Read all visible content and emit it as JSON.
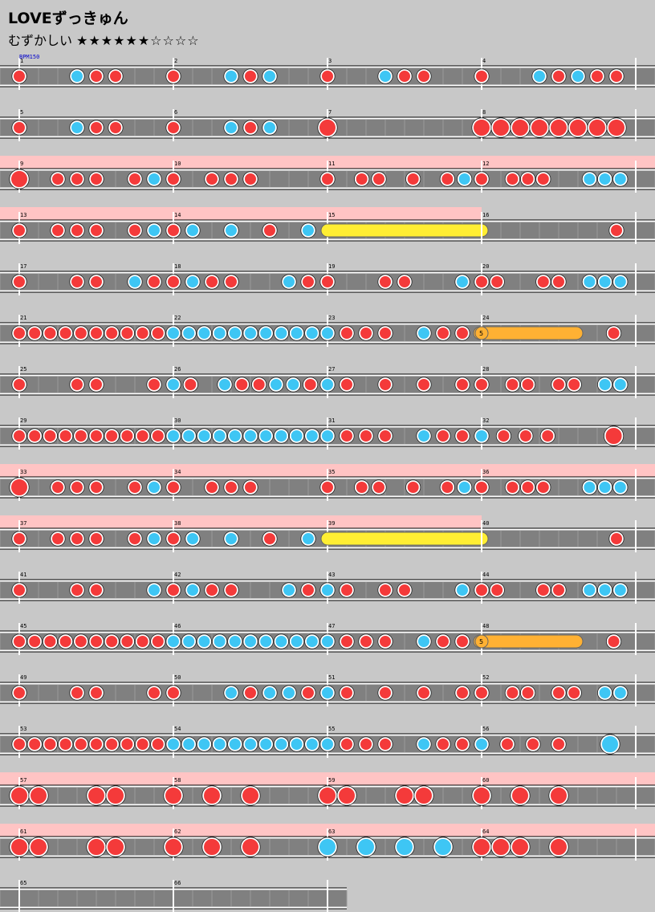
{
  "song": {
    "title": "LOVEずっきゅん"
  },
  "difficulty": {
    "label": "むずかしい",
    "stars": "★★★★★★☆☆☆☆"
  },
  "bpm_label": "BPM150",
  "colors": {
    "don": "#f43a3a",
    "ka": "#3ec6f4",
    "drumroll": "#ffee33",
    "balloon": "#ffb133",
    "gogo": "#ffc4c4",
    "lane": "#808080"
  },
  "measures_per_row": 4,
  "subdivisions": 8,
  "row_heights": [
    {
      "row": 1,
      "gogo": false
    },
    {
      "row": 2,
      "gogo": false
    },
    {
      "row": 3,
      "gogo": true
    },
    {
      "row": 4,
      "gogo": true
    },
    {
      "row": 5,
      "gogo": false
    },
    {
      "row": 6,
      "gogo": false
    },
    {
      "row": 7,
      "gogo": false
    },
    {
      "row": 8,
      "gogo": false
    },
    {
      "row": 9,
      "gogo": true
    },
    {
      "row": 10,
      "gogo": true
    },
    {
      "row": 11,
      "gogo": false
    },
    {
      "row": 12,
      "gogo": false
    },
    {
      "row": 13,
      "gogo": false
    },
    {
      "row": 14,
      "gogo": false
    },
    {
      "row": 15,
      "gogo": true
    },
    {
      "row": 16,
      "gogo": true
    },
    {
      "row": 17,
      "gogo": false
    }
  ],
  "measures": [
    {
      "n": "1",
      "notes": "d..kdd.."
    },
    {
      "n": "2",
      "notes": "d..kdk.."
    },
    {
      "n": "3",
      "notes": "d..kdd.."
    },
    {
      "n": "4",
      "notes": "d..kdkdd"
    },
    {
      "n": "5",
      "notes": "d..kdd.."
    },
    {
      "n": "6",
      "notes": "d..kdk.."
    },
    {
      "n": "7",
      "notes": "D......."
    },
    {
      "n": "8",
      "notes": "DDDDDDDD"
    },
    {
      "n": "9",
      "notes": "D.ddd.dk"
    },
    {
      "n": "10",
      "notes": "d.ddd..."
    },
    {
      "n": "11",
      "notes": "d.dd.d.dk"
    },
    {
      "n": "12",
      "notes": "d.ddd..kkk"
    },
    {
      "n": "13",
      "notes": "d.ddd.dk"
    },
    {
      "n": "14",
      "notes": "dk.k.d.k"
    },
    {
      "n": "15",
      "notes": "r"
    },
    {
      "n": "16",
      "notes": ".......d"
    },
    {
      "n": "17",
      "notes": "d..dd.kd"
    },
    {
      "n": "18",
      "notes": "dkdd..kd"
    },
    {
      "n": "19",
      "notes": "d..dd..k"
    },
    {
      "n": "20",
      "notes": "dd..dd.kkk"
    },
    {
      "n": "21",
      "notes": "dddddddddd"
    },
    {
      "n": "22",
      "notes": "kkkkkkkkkk"
    },
    {
      "n": "23",
      "notes": "kddd.kdd"
    },
    {
      "n": "24",
      "notes": "b.....d"
    },
    {
      "n": "25",
      "notes": "d..dd..d"
    },
    {
      "n": "26",
      "notes": "kd.kddkkd"
    },
    {
      "n": "27",
      "notes": "kd.d.d.d"
    },
    {
      "n": "28",
      "notes": "d.dd.dd.kk"
    },
    {
      "n": "29",
      "notes": "dddddddddd"
    },
    {
      "n": "30",
      "notes": "kkkkkkkkkk"
    },
    {
      "n": "31",
      "notes": "kddd.kdd"
    },
    {
      "n": "32",
      "notes": "kddd..D"
    },
    {
      "n": "33",
      "notes": "D.ddd.dk"
    },
    {
      "n": "34",
      "notes": "d.ddd..."
    },
    {
      "n": "35",
      "notes": "d.dd.d.dk"
    },
    {
      "n": "36",
      "notes": "d.ddd..kkk"
    },
    {
      "n": "37",
      "notes": "d.ddd.dk"
    },
    {
      "n": "38",
      "notes": "dk.k.d.k"
    },
    {
      "n": "39",
      "notes": "r"
    },
    {
      "n": "40",
      "notes": ".......d"
    },
    {
      "n": "41",
      "notes": "d..dd..k"
    },
    {
      "n": "42",
      "notes": "dkdd..kd"
    },
    {
      "n": "43",
      "notes": "kd.dd..k"
    },
    {
      "n": "44",
      "notes": "dd..dd.kkk"
    },
    {
      "n": "45",
      "notes": "dddddddddd"
    },
    {
      "n": "46",
      "notes": "kkkkkkkkkk"
    },
    {
      "n": "47",
      "notes": "kddd.kdd"
    },
    {
      "n": "48",
      "notes": "b.....d"
    },
    {
      "n": "49",
      "notes": "d..dd..d"
    },
    {
      "n": "50",
      "notes": "d..kdkkd"
    },
    {
      "n": "51",
      "notes": "kd.d.d.d"
    },
    {
      "n": "52",
      "notes": "d.dd.dd.kk"
    },
    {
      "n": "53",
      "notes": "dddddddddd"
    },
    {
      "n": "54",
      "notes": "kkkkkkkkkk"
    },
    {
      "n": "55",
      "notes": "kddd.kdd"
    },
    {
      "n": "56",
      "notes": "kddd.K"
    },
    {
      "n": "57",
      "notes": "DD..DD.."
    },
    {
      "n": "58",
      "notes": "D.D.D..."
    },
    {
      "n": "59",
      "notes": "DD..DD.."
    },
    {
      "n": "60",
      "notes": "D.D.D..."
    },
    {
      "n": "61",
      "notes": "DD..DD.."
    },
    {
      "n": "62",
      "notes": "D.D.D..."
    },
    {
      "n": "63",
      "notes": "K.K.K.K."
    },
    {
      "n": "64",
      "notes": "DDD.D..."
    },
    {
      "n": "65",
      "notes": "........"
    },
    {
      "n": "66",
      "notes": "........"
    }
  ],
  "balloon_count": "5"
}
